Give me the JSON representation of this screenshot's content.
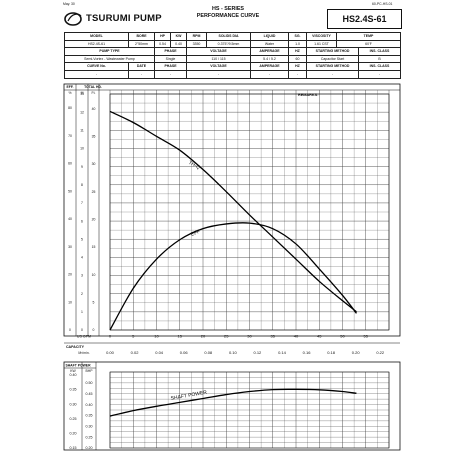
{
  "header": {
    "corner_left": "May. 30",
    "corner_right": "60-PC-HS-01",
    "brand": "TSURUMI PUMP",
    "title_line1": "HS - SERIES",
    "title_line2": "PERFORMANCE CURVE",
    "model": "HS2.4S-61"
  },
  "spec_table": {
    "rows": [
      [
        "MODEL",
        "BORE",
        "HP",
        "KW",
        "RPM",
        "SOLIDS DIA",
        "LIQUID",
        "SG.",
        "VISCOSITY",
        "TEMP"
      ],
      [
        "HS2.4S-61",
        "2\"50mm",
        "0.54",
        "0.40",
        "3350",
        "0.375\"/9.5mm",
        "Water",
        "1.0",
        "1.61 CST",
        "60'F"
      ],
      [
        "PUMP TYPE",
        "PHASE",
        "VOLTAGE",
        "AMPERAGE",
        "HZ",
        "STARTING METHOD",
        "INS. CLASS"
      ],
      [
        "Semi-Vortex - Wastewater Pump",
        "Single",
        "110 / 115",
        "5.4 / 5.2",
        "60",
        "Capacitor Start",
        "B"
      ],
      [
        "CURVE No.",
        "DATE",
        "PHASE",
        "VOLTAGE",
        "AMPERAGE",
        "HZ",
        "STARTING METHOD",
        "INS. CLASS"
      ],
      [
        "-",
        "-",
        "-",
        "-",
        "-",
        "-",
        "-",
        "-"
      ]
    ]
  },
  "chart_data": [
    {
      "type": "line",
      "remarks_label": "REMARKS:",
      "col_eff": "EFF.",
      "col_total_hd": "TOTAL HD.",
      "unit_pct": "%",
      "unit_m": "M",
      "unit_ft": "Ft.",
      "eff_ticks": [
        "80",
        "70",
        "60",
        "50",
        "40",
        "30",
        "20",
        "10",
        "0"
      ],
      "m_ticks": [
        "13",
        "12",
        "11",
        "10",
        "9",
        "8",
        "7",
        "6",
        "5",
        "4",
        "3",
        "2",
        "1",
        "0"
      ],
      "ft_ticks": [
        "40",
        "35",
        "30",
        "25",
        "20",
        "15",
        "10",
        "5",
        "0"
      ],
      "x_label": "US GPM",
      "x_ticks": [
        "0",
        "5",
        "10",
        "15",
        "20",
        "25",
        "30",
        "35",
        "40",
        "45",
        "50",
        "55"
      ],
      "capacity_label": "CAPACITY",
      "capacity_unit": "M³/min.",
      "capacity_ticks": [
        "0.00",
        "0.02",
        "0.04",
        "0.06",
        "0.08",
        "0.10",
        "0.12",
        "0.14",
        "0.16",
        "0.18",
        "0.20",
        "0.22"
      ],
      "xlim": [
        0,
        60
      ],
      "ylim_ft": [
        0,
        42.65
      ],
      "ylim_eff": [
        0,
        85
      ],
      "series": [
        {
          "name": "TH-Q",
          "axis": "ft",
          "x": [
            0,
            5,
            10,
            15,
            20,
            25,
            30,
            35,
            40,
            45,
            50,
            53
          ],
          "y": [
            39.5,
            37.5,
            35.0,
            32.5,
            29.0,
            25.0,
            20.8,
            16.8,
            12.8,
            8.8,
            5.3,
            3.3
          ]
        },
        {
          "name": "EFF",
          "axis": "eff",
          "x": [
            0,
            5,
            10,
            15,
            20,
            25,
            30,
            35,
            40,
            45,
            50,
            53
          ],
          "y": [
            0,
            15,
            25.5,
            32.5,
            36.5,
            38.2,
            38.5,
            36.5,
            31,
            22,
            12.5,
            6
          ]
        }
      ]
    },
    {
      "type": "line",
      "title": "SHAFT POWER",
      "unit_kw": "KW",
      "unit_bhp": "BHP",
      "kw_ticks": [
        "0.40",
        "0.35",
        "0.30",
        "0.25",
        "0.20",
        "0.15"
      ],
      "bhp_ticks": [
        "0.50",
        "0.45",
        "0.40",
        "0.35",
        "0.30",
        "0.25",
        "0.20"
      ],
      "xlim": [
        0,
        60
      ],
      "ylim_bhp": [
        0.2,
        0.55
      ],
      "series": [
        {
          "name": "SHAFT POWER",
          "x": [
            0,
            5,
            10,
            15,
            20,
            25,
            30,
            35,
            40,
            45,
            50,
            53
          ],
          "y": [
            0.347,
            0.372,
            0.392,
            0.41,
            0.428,
            0.446,
            0.46,
            0.469,
            0.47,
            0.468,
            0.46,
            0.452
          ]
        }
      ]
    }
  ]
}
